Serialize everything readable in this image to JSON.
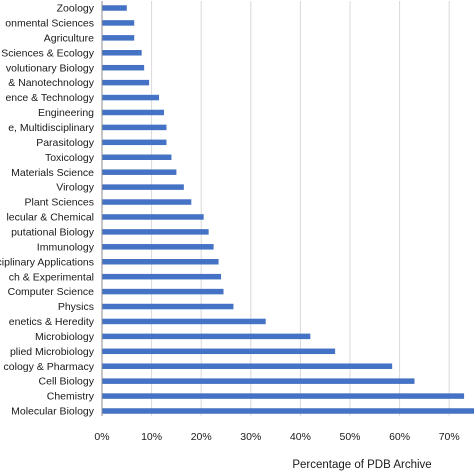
{
  "chart_data": {
    "type": "bar",
    "orientation": "horizontal",
    "xlabel": "Percentage of PDB Archive",
    "xlim": [
      0,
      0.75
    ],
    "x_ticks": [
      "0%",
      "10%",
      "20%",
      "30%",
      "40%",
      "50%",
      "60%",
      "70%"
    ],
    "grid": "vertical major gridlines on",
    "legend": "none",
    "bar_color": "#4472c4",
    "categories": [
      "Zoology",
      "onmental Sciences",
      "Agriculture",
      "Sciences & Ecology",
      "volutionary Biology",
      "& Nanotechnology",
      "ence & Technology",
      "Engineering",
      "e, Multidisciplinary",
      "Parasitology",
      "Toxicology",
      "Materials Science",
      "Virology",
      "Plant Sciences",
      "lecular & Chemical",
      "putational Biology",
      "Immunology",
      "ciplinary Applications",
      "ch & Experimental",
      "Computer Science",
      "Physics",
      "enetics & Heredity",
      "Microbiology",
      "plied Microbiology",
      "cology & Pharmacy",
      "Cell Biology",
      "Chemistry",
      "Molecular Biology"
    ],
    "values": [
      0.05,
      0.065,
      0.065,
      0.08,
      0.085,
      0.095,
      0.115,
      0.125,
      0.13,
      0.13,
      0.14,
      0.15,
      0.165,
      0.18,
      0.205,
      0.215,
      0.225,
      0.235,
      0.24,
      0.245,
      0.265,
      0.33,
      0.42,
      0.47,
      0.585,
      0.63,
      0.73,
      0.76
    ]
  }
}
